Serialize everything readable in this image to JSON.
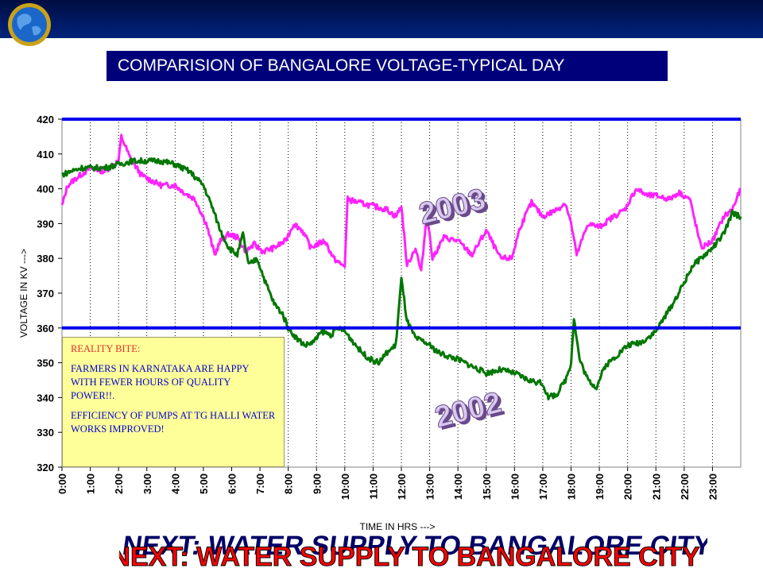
{
  "header": {
    "logo_icon": "globe-logo-icon"
  },
  "slide_title": "COMPARISION OF BANGALORE VOLTAGE-TYPICAL DAY",
  "note": {
    "title": "REALITY BITE:",
    "line1": "FARMERS IN KARNATAKA ARE HAPPY WITH FEWER HOURS OF QUALITY POWER!!.",
    "line2": "EFFICIENCY OF PUMPS AT TG HALLI WATER WORKS IMPROVED!"
  },
  "footer_banner": "NEXT: WATER SUPPLY TO BANGALORE CITY",
  "colors": {
    "title_bg": "#00007a",
    "series_2003": "#ff22ff",
    "series_2002": "#007700",
    "limit_line": "#0000ee",
    "note_bg": "#ffff99",
    "banner_red": "#ff0000"
  },
  "chart_data": {
    "type": "line",
    "title": "",
    "xlabel": "TIME IN HRS --->",
    "ylabel": "VOLTAGE IN KV --->",
    "ylim": [
      320,
      420
    ],
    "yticks": [
      "420",
      "410",
      "400",
      "390",
      "380",
      "370",
      "360",
      "350",
      "340",
      "330",
      "320"
    ],
    "xlim": [
      0,
      24
    ],
    "xticks": [
      "0:00",
      "1:00",
      "2:00",
      "3:00",
      "4:00",
      "5:00",
      "6:00",
      "7:00",
      "8:00",
      "9:00",
      "10:00",
      "11:00",
      "12:00",
      "13:00",
      "14:00",
      "15:00",
      "16:00",
      "17:00",
      "18:00",
      "19:00",
      "20:00",
      "21:00",
      "22:00",
      "23:00"
    ],
    "grid": "vertical dotted",
    "reference_lines": [
      420,
      360
    ],
    "series": [
      {
        "name": "2003",
        "x": [
          0,
          0.2,
          0.5,
          1,
          1.5,
          2,
          2.1,
          2.4,
          2.8,
          3,
          3.5,
          4,
          4.3,
          4.7,
          5.1,
          5.4,
          5.6,
          5.9,
          6.2,
          6.5,
          6.8,
          7.1,
          7.5,
          7.9,
          8.2,
          8.5,
          8.8,
          9.0,
          9.3,
          9.6,
          9.9,
          10.0,
          10.1,
          10.5,
          11,
          11.5,
          11.8,
          12.0,
          12.2,
          12.5,
          12.7,
          12.9,
          13.1,
          13.5,
          14.0,
          14.5,
          15.0,
          15.5,
          15.9,
          16.2,
          16.6,
          17.0,
          17.5,
          17.8,
          18.0,
          18.2,
          18.6,
          19.0,
          19.5,
          19.9,
          20.3,
          20.7,
          21.0,
          21.5,
          21.8,
          22.0,
          22.2,
          22.6,
          23.0,
          23.4,
          23.7,
          24
        ],
        "values": [
          395,
          401,
          403,
          406,
          405,
          408,
          415,
          409,
          404,
          403,
          401,
          401,
          399,
          397,
          390,
          381,
          385,
          387,
          386,
          382,
          384,
          382,
          383,
          385,
          390,
          388,
          383,
          384,
          385,
          380,
          378,
          378,
          397,
          396,
          395,
          394,
          392,
          395,
          378,
          383,
          376,
          393,
          380,
          386,
          385,
          381,
          388,
          380,
          380,
          389,
          396,
          392,
          394,
          396,
          390,
          381,
          390,
          389,
          392,
          394,
          400,
          398,
          398,
          397,
          399,
          398,
          397,
          383,
          385,
          392,
          394,
          400
        ]
      },
      {
        "name": "2002",
        "x": [
          0,
          0.3,
          0.7,
          1,
          1.5,
          2,
          2.5,
          3,
          3.5,
          4,
          4.5,
          5,
          5.3,
          5.6,
          5.9,
          6.2,
          6.4,
          6.6,
          6.9,
          7.2,
          7.5,
          7.8,
          8.0,
          8.3,
          8.6,
          8.9,
          9.2,
          9.5,
          9.8,
          10.0,
          10.3,
          10.6,
          10.9,
          11.2,
          11.5,
          11.8,
          12.0,
          12.2,
          12.5,
          12.8,
          13.0,
          13.3,
          13.6,
          14.0,
          14.5,
          15.0,
          15.5,
          16.0,
          16.5,
          17.0,
          17.2,
          17.5,
          17.8,
          18.0,
          18.1,
          18.3,
          18.6,
          18.9,
          19.2,
          19.6,
          20.0,
          20.5,
          21.0,
          21.3,
          21.6,
          22.0,
          22.3,
          22.6,
          23.0,
          23.4,
          23.7,
          24
        ],
        "values": [
          404,
          405,
          406,
          406,
          406,
          407,
          408,
          408,
          408,
          407,
          405,
          401,
          395,
          388,
          383,
          381,
          387,
          378,
          380,
          373,
          367,
          364,
          360,
          357,
          355,
          356,
          359,
          358,
          360,
          359,
          356,
          353,
          351,
          350,
          353,
          355,
          374,
          362,
          357,
          356,
          355,
          353,
          352,
          351,
          349,
          347,
          348,
          347,
          345,
          344,
          340,
          341,
          345,
          350,
          363,
          351,
          345,
          343,
          349,
          352,
          355,
          356,
          359,
          363,
          367,
          373,
          378,
          380,
          383,
          387,
          393,
          392
        ]
      }
    ],
    "annotations": [
      "2003",
      "2002"
    ]
  }
}
